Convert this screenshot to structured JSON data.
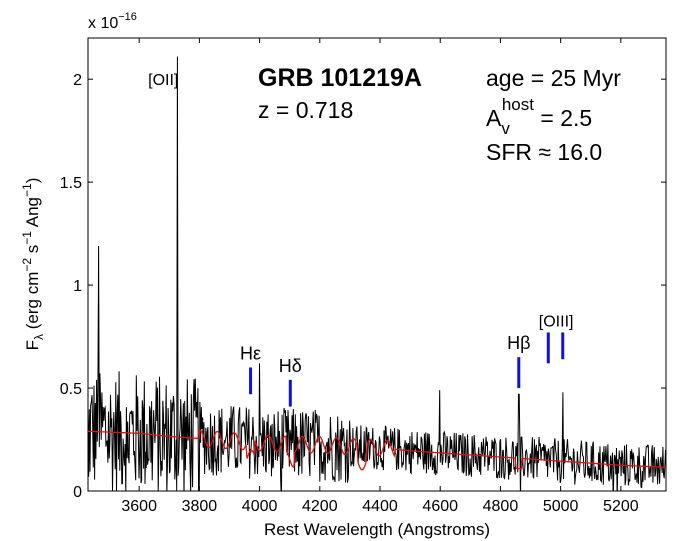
{
  "chart_data": {
    "type": "line",
    "title": "GRB 101219A",
    "redshift_text": "z = 0.718",
    "xlabel": "Rest Wavelength (Angstroms)",
    "ylabel": {
      "base": "F",
      "sub": "λ",
      "units_open": " (erg cm",
      "exp1": "−2",
      "units_mid1": " s",
      "exp2": "−1",
      "units_mid2": " Ang",
      "exp3": "−1",
      "units_close": ")"
    },
    "y_multiplier": {
      "prefix": "x 10",
      "exponent": "−16"
    },
    "xlim": [
      3430,
      5350
    ],
    "ylim": [
      0,
      2.2
    ],
    "x_ticks": [
      3600,
      3800,
      4000,
      4200,
      4400,
      4600,
      4800,
      5000,
      5200
    ],
    "y_ticks": [
      0,
      0.5,
      1,
      1.5,
      2
    ],
    "y_tick_labels": [
      "0",
      "0.5",
      "1",
      "1.5",
      "2"
    ],
    "model_params": {
      "age": "age = 25 Myr",
      "av_prefix": "A",
      "av_sub": "v",
      "av_sup": "host",
      "av_value": " = 2.5",
      "sfr": "SFR ≈ 16.0"
    },
    "line_markers": [
      {
        "label": "Hε",
        "wavelength": 3970,
        "y_bottom": 0.47,
        "y_top": 0.6
      },
      {
        "label": "Hδ",
        "wavelength": 4102,
        "y_bottom": 0.41,
        "y_top": 0.54
      },
      {
        "label": "Hβ",
        "wavelength": 4861,
        "y_bottom": 0.5,
        "y_top": 0.65
      },
      {
        "label": "",
        "wavelength": 4959,
        "y_bottom": 0.62,
        "y_top": 0.77
      },
      {
        "label": "",
        "wavelength": 5007,
        "y_bottom": 0.64,
        "y_top": 0.77
      }
    ],
    "oiii_label": {
      "text": "[OIII]",
      "wavelength": 4985,
      "y": 0.8
    },
    "oii_label": {
      "text": "[OII]",
      "wavelength": 3680,
      "y": 2.0
    },
    "series": [
      {
        "role": "observed",
        "color": "#000000",
        "emission_lines": [
          {
            "wavelength": 3727,
            "peak": 2.11
          },
          {
            "wavelength": 4000,
            "peak": 0.62
          },
          {
            "wavelength": 4861,
            "peak": 0.47
          },
          {
            "wavelength": 5007,
            "peak": 0.48
          },
          {
            "wavelength": 4598,
            "peak": 0.49
          },
          {
            "wavelength": 3465,
            "peak": 1.19
          }
        ]
      },
      {
        "role": "model",
        "color": "#dd1111",
        "x": [
          3430,
          3600,
          3700,
          3800,
          3900,
          4000,
          4100,
          4200,
          4300,
          4400,
          4500,
          4600,
          4700,
          4800,
          4900,
          5000,
          5100,
          5200,
          5350
        ],
        "y": [
          0.29,
          0.28,
          0.265,
          0.255,
          0.245,
          0.235,
          0.225,
          0.225,
          0.215,
          0.21,
          0.195,
          0.185,
          0.175,
          0.165,
          0.155,
          0.145,
          0.135,
          0.125,
          0.115
        ]
      }
    ],
    "colors": {
      "marker": "#1111dd",
      "observed": "#000000",
      "model": "#dd1111"
    }
  }
}
